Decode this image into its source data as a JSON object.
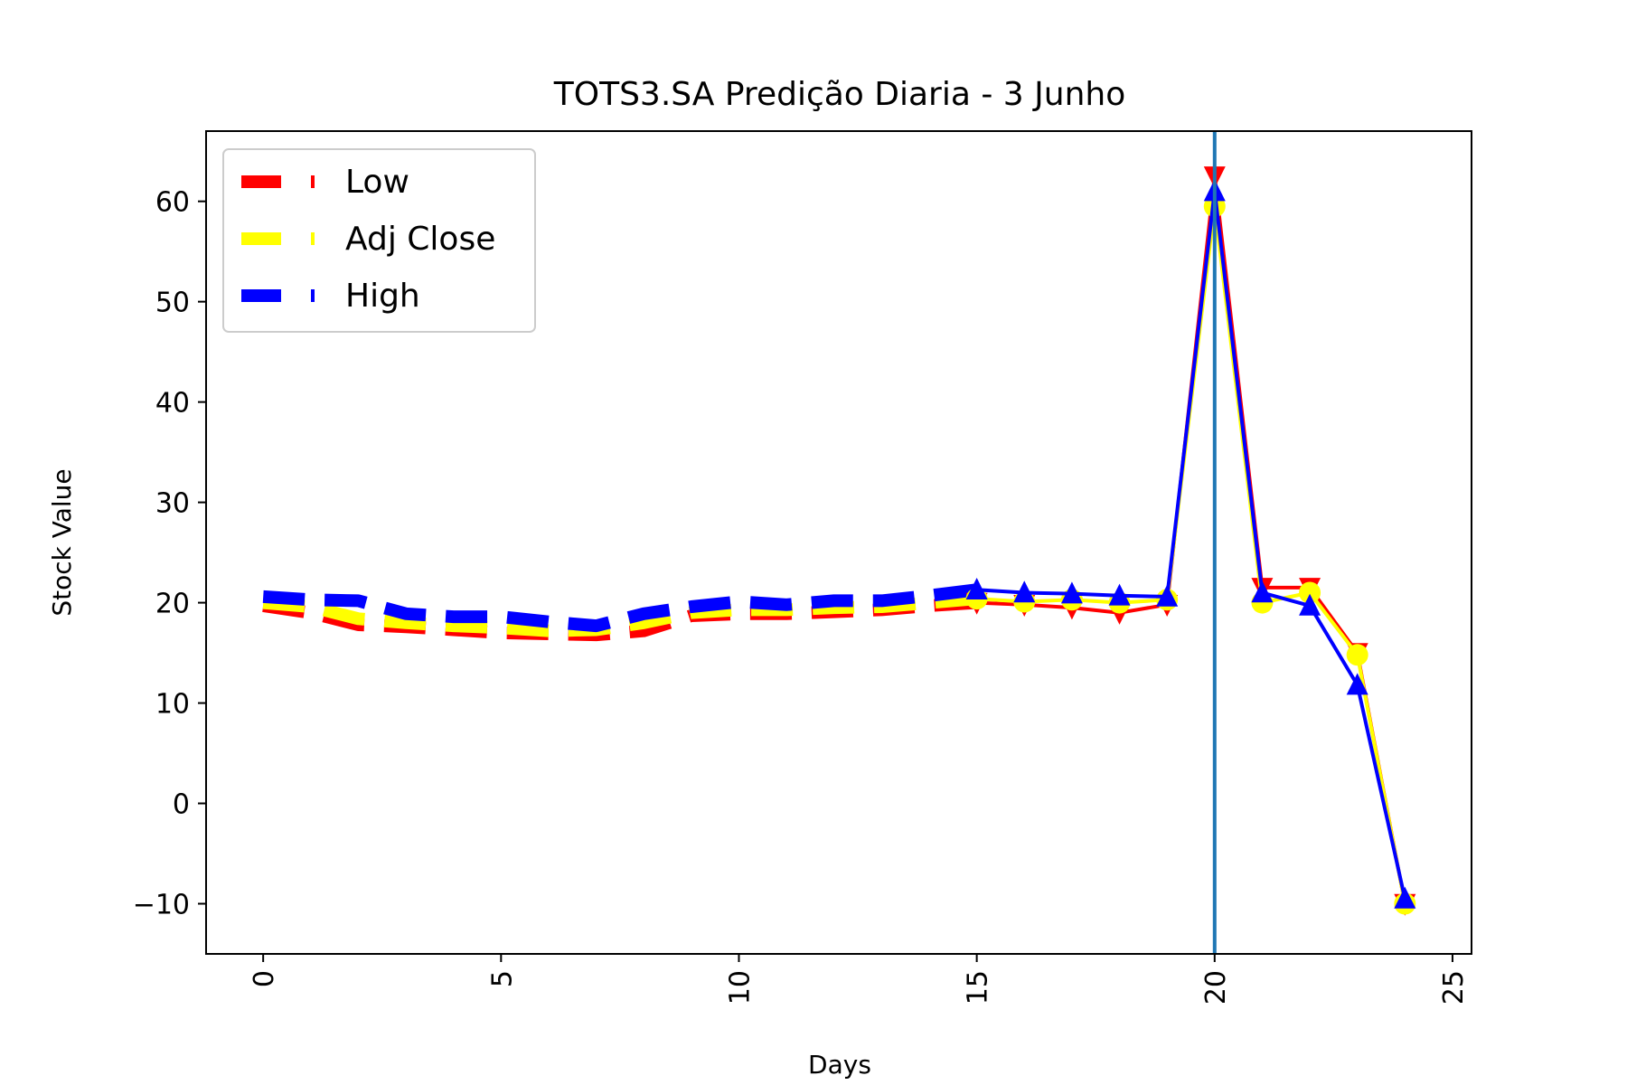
{
  "chart_data": {
    "type": "line",
    "title": "TOTS3.SA Predição Diaria - 3 Junho",
    "xlabel": "Days",
    "ylabel": "Stock Value",
    "xlim": [
      -1.2,
      25.4
    ],
    "ylim": [
      -15,
      67
    ],
    "xticks": [
      0,
      5,
      10,
      15,
      20,
      25
    ],
    "yticks": [
      -10,
      0,
      10,
      20,
      30,
      40,
      50,
      60
    ],
    "xtick_labels": [
      "0",
      "5",
      "10",
      "15",
      "20",
      "25"
    ],
    "ytick_labels": [
      "−10",
      "0",
      "10",
      "20",
      "30",
      "40",
      "50",
      "60"
    ],
    "grid": false,
    "legend": "top-left",
    "vline_x": 20,
    "vline_color": "#1f77b4",
    "series": [
      {
        "name": "Low",
        "color": "#ff0000",
        "marker": "triangle-down",
        "historical": {
          "x": [
            0,
            1,
            2,
            3,
            4,
            5,
            6,
            7,
            8,
            9,
            10,
            11,
            12,
            13,
            14,
            15
          ],
          "y": [
            19.7,
            19.0,
            17.8,
            17.6,
            17.3,
            17.0,
            16.9,
            16.8,
            17.2,
            18.7,
            18.9,
            18.9,
            19.1,
            19.3,
            19.7,
            20.0
          ]
        },
        "prediction": {
          "x": [
            15,
            16,
            17,
            18,
            19,
            20,
            21,
            22,
            23,
            24
          ],
          "y": [
            20.0,
            19.8,
            19.5,
            19.0,
            19.8,
            62.5,
            21.5,
            21.5,
            15.0,
            -10.0
          ]
        }
      },
      {
        "name": "Adj Close",
        "color": "#ffff00",
        "marker": "circle",
        "historical": {
          "x": [
            0,
            1,
            2,
            3,
            4,
            5,
            6,
            7,
            8,
            9,
            10,
            11,
            12,
            13,
            14,
            15
          ],
          "y": [
            20.0,
            19.6,
            18.4,
            18.0,
            17.7,
            17.5,
            17.2,
            17.3,
            18.0,
            19.0,
            19.3,
            19.3,
            19.5,
            19.6,
            20.0,
            20.4
          ]
        },
        "prediction": {
          "x": [
            15,
            16,
            17,
            18,
            19,
            20,
            21,
            22,
            23,
            24
          ],
          "y": [
            20.4,
            20.1,
            20.3,
            20.0,
            20.3,
            59.5,
            20.0,
            21.0,
            14.8,
            -10.0
          ]
        }
      },
      {
        "name": "High",
        "color": "#0000ff",
        "marker": "triangle-up",
        "historical": {
          "x": [
            0,
            1,
            2,
            3,
            4,
            5,
            6,
            7,
            8,
            9,
            10,
            11,
            12,
            13,
            14,
            15
          ],
          "y": [
            20.6,
            20.3,
            20.2,
            18.9,
            18.6,
            18.6,
            18.1,
            17.7,
            18.9,
            19.6,
            20.1,
            19.8,
            20.2,
            20.2,
            20.7,
            21.3
          ]
        },
        "prediction": {
          "x": [
            15,
            16,
            17,
            18,
            19,
            20,
            21,
            22,
            23,
            24
          ],
          "y": [
            21.3,
            21.0,
            20.9,
            20.7,
            20.6,
            61.0,
            21.0,
            19.7,
            11.8,
            -9.5
          ]
        }
      }
    ]
  }
}
